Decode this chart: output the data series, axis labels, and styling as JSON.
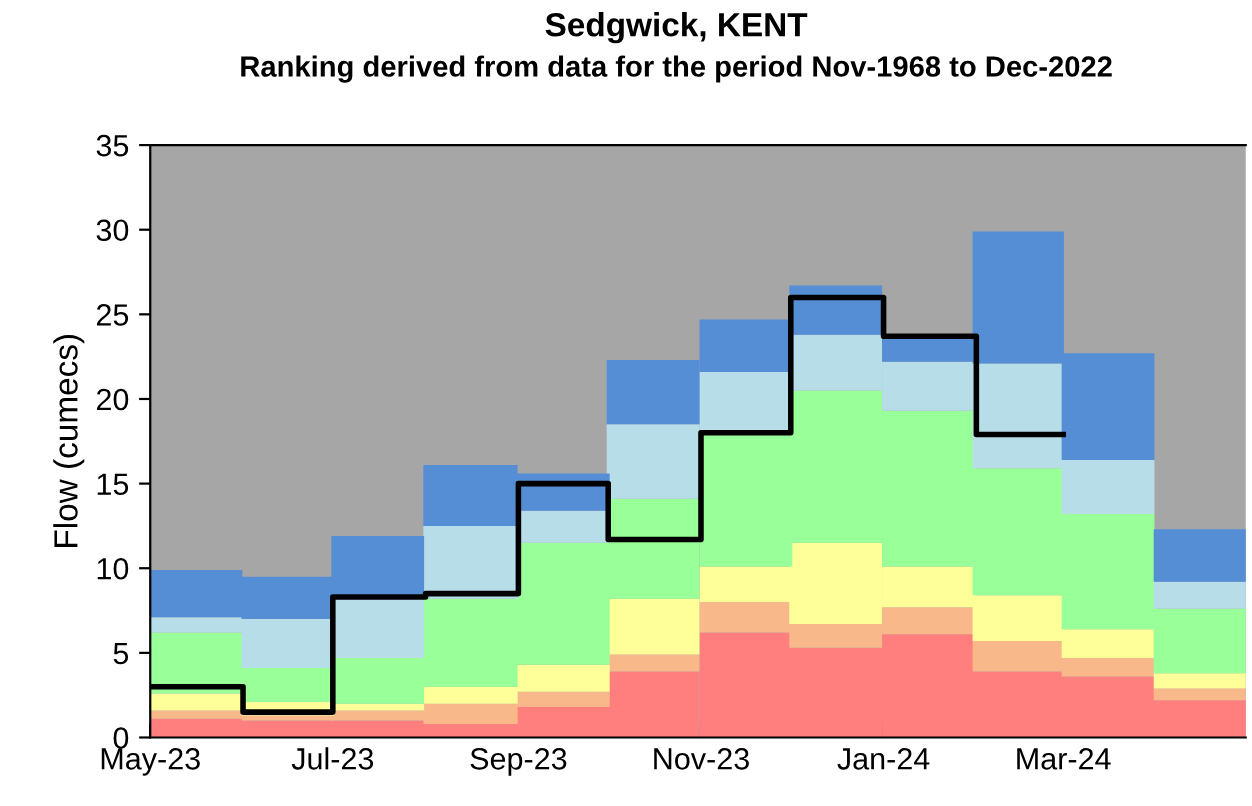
{
  "chart_data": {
    "type": "bar",
    "stacked": true,
    "title": "Sedgwick, KENT",
    "subtitle": "Ranking derived from data for the period Nov-1968 to Dec-2022",
    "ylabel": "Flow (cumecs)",
    "x": [
      "2023-05-16",
      "2023-06-16",
      "2023-07-16",
      "2023-08-16",
      "2023-09-16",
      "2023-10-16",
      "2023-11-16",
      "2023-12-16",
      "2024-01-16",
      "2024-02-15",
      "2024-03-16",
      "2024-04-16"
    ],
    "series": [
      {
        "color": "#ff7f7f",
        "values": [
          1.1,
          1.0,
          1.0,
          0.8,
          1.8,
          3.9,
          6.2,
          5.3,
          6.1,
          3.9,
          3.6,
          2.2
        ]
      },
      {
        "color": "#f9b889",
        "values": [
          0.5,
          0.3,
          0.6,
          1.2,
          0.9,
          1.0,
          1.8,
          1.4,
          1.6,
          1.8,
          1.1,
          0.7
        ]
      },
      {
        "color": "#ffff99",
        "values": [
          1.0,
          0.8,
          0.4,
          1.0,
          1.6,
          3.3,
          2.1,
          4.8,
          2.4,
          2.7,
          1.7,
          0.9
        ]
      },
      {
        "color": "#99ff99",
        "values": [
          3.6,
          2.0,
          2.7,
          5.2,
          7.2,
          5.9,
          7.9,
          9.0,
          9.2,
          7.5,
          6.8,
          3.8
        ]
      },
      {
        "color": "#b7dde8",
        "values": [
          0.9,
          2.9,
          3.6,
          4.3,
          1.9,
          4.4,
          3.6,
          3.3,
          2.9,
          6.2,
          3.2,
          1.6
        ]
      },
      {
        "color": "#558ed5",
        "values": [
          2.8,
          2.5,
          3.6,
          3.6,
          2.2,
          3.8,
          3.1,
          2.9,
          1.6,
          7.8,
          6.3,
          3.1
        ]
      },
      {
        "type": "step",
        "color": "#000000",
        "x": [
          "2023-05",
          "2023-06",
          "2023-07",
          "2023-08",
          "2023-09",
          "2023-10",
          "2023-11",
          "2023-12",
          "2024-01",
          "2024-02",
          "2024-03"
        ],
        "values": [
          3.0,
          1.5,
          8.3,
          8.5,
          15.0,
          11.7,
          18.0,
          26.0,
          23.7,
          17.9,
          17.9
        ]
      }
    ],
    "xlim": [
      "2023-05",
      "2024-05"
    ],
    "xticks": [
      {
        "value": "2023-05",
        "label": "May-23"
      },
      {
        "value": "2023-07",
        "label": "Jul-23"
      },
      {
        "value": "2023-09",
        "label": "Sep-23"
      },
      {
        "value": "2023-11",
        "label": "Nov-23"
      },
      {
        "value": "2024-01",
        "label": "Jan-24"
      },
      {
        "value": "2024-03",
        "label": "Mar-24"
      }
    ],
    "ylim": [
      0,
      35
    ],
    "yticks": [
      0,
      5,
      10,
      15,
      20,
      25,
      30,
      35
    ],
    "grid": false,
    "legend": false
  }
}
